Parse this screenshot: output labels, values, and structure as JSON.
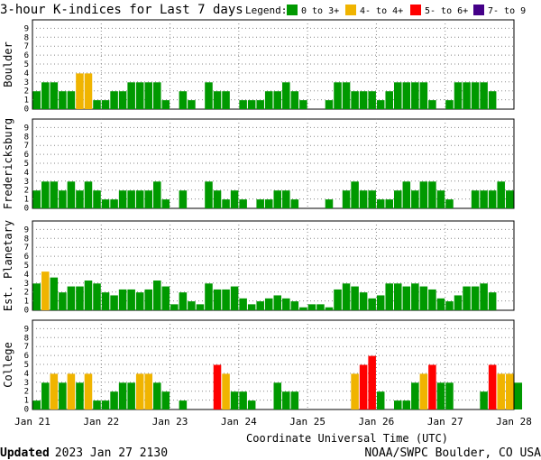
{
  "chart_data": {
    "type": "bar",
    "title": "3-hour K-indices for Last 7 days",
    "legend": {
      "label": "Legend:",
      "entries": [
        {
          "label": "0 to 3+",
          "color": "#009900"
        },
        {
          "label": "4- to 4+",
          "color": "#f0b400"
        },
        {
          "label": "5- to 6+",
          "color": "#ff0000"
        },
        {
          "label": "7- to 9",
          "color": "#440088"
        }
      ]
    },
    "xlabel": "Coordinate Universal Time (UTC)",
    "x_ticks": [
      "Jan 21",
      "Jan 22",
      "Jan 23",
      "Jan 24",
      "Jan 25",
      "Jan 26",
      "Jan 27",
      "Jan 28"
    ],
    "ylim": [
      0,
      9
    ],
    "y_ticks": [
      0,
      1,
      2,
      3,
      4,
      5,
      6,
      7,
      8,
      9
    ],
    "grid": true,
    "bins_per_day": 8,
    "panels": [
      {
        "name": "Boulder",
        "values": [
          2,
          3,
          3,
          2,
          2,
          4,
          4,
          1,
          1,
          2,
          2,
          3,
          3,
          3,
          3,
          1,
          0,
          2,
          1,
          0,
          3,
          2,
          2,
          0,
          1,
          1,
          1,
          2,
          2,
          3,
          2,
          1,
          0,
          0,
          1,
          3,
          3,
          2,
          2,
          2,
          1,
          2,
          3,
          3,
          3,
          3,
          1,
          0,
          1,
          3,
          3,
          3,
          3,
          2,
          0
        ]
      },
      {
        "name": "Fredericksburg",
        "values": [
          2,
          3,
          3,
          2,
          3,
          2,
          3,
          2,
          1,
          1,
          2,
          2,
          2,
          2,
          3,
          1,
          0,
          2,
          0,
          0,
          3,
          2,
          1,
          2,
          1,
          0,
          1,
          1,
          2,
          2,
          1,
          0,
          0,
          0,
          1,
          0,
          2,
          3,
          2,
          2,
          1,
          1,
          2,
          3,
          2,
          3,
          3,
          2,
          1,
          0,
          0,
          2,
          2,
          2,
          3,
          2,
          0
        ]
      },
      {
        "name": "Est. Planetary",
        "values": [
          3,
          4.33,
          3.67,
          2,
          2.67,
          2.67,
          3.33,
          3,
          2,
          1.67,
          2.33,
          2.33,
          2,
          2.33,
          3.33,
          2.67,
          0.67,
          2,
          1,
          0.67,
          3,
          2.33,
          2.33,
          2.67,
          1.33,
          0.67,
          1,
          1.33,
          1.67,
          1.33,
          1,
          0.33,
          0.67,
          0.67,
          0.33,
          2.33,
          3,
          2.67,
          2,
          1.33,
          1.67,
          3,
          3,
          2.67,
          3,
          2.67,
          2.33,
          1.33,
          1,
          1.67,
          2.67,
          2.67,
          3,
          2
        ]
      },
      {
        "name": "College",
        "values": [
          1,
          3,
          4,
          3,
          4,
          3,
          4,
          1,
          1,
          2,
          3,
          3,
          4,
          4,
          3,
          2,
          0,
          1,
          0,
          0,
          0,
          5,
          4,
          2,
          2,
          1,
          0,
          0,
          3,
          2,
          2,
          0,
          0,
          0,
          0,
          0,
          0,
          4,
          5,
          6,
          2,
          0,
          1,
          1,
          3,
          4,
          5,
          3,
          3,
          0,
          0,
          0,
          2,
          5,
          4,
          4,
          3,
          0
        ]
      }
    ]
  },
  "footer": {
    "updated_label": "Updated",
    "updated_value": "2023 Jan 27 2130",
    "credit": "NOAA/SWPC Boulder, CO USA"
  }
}
